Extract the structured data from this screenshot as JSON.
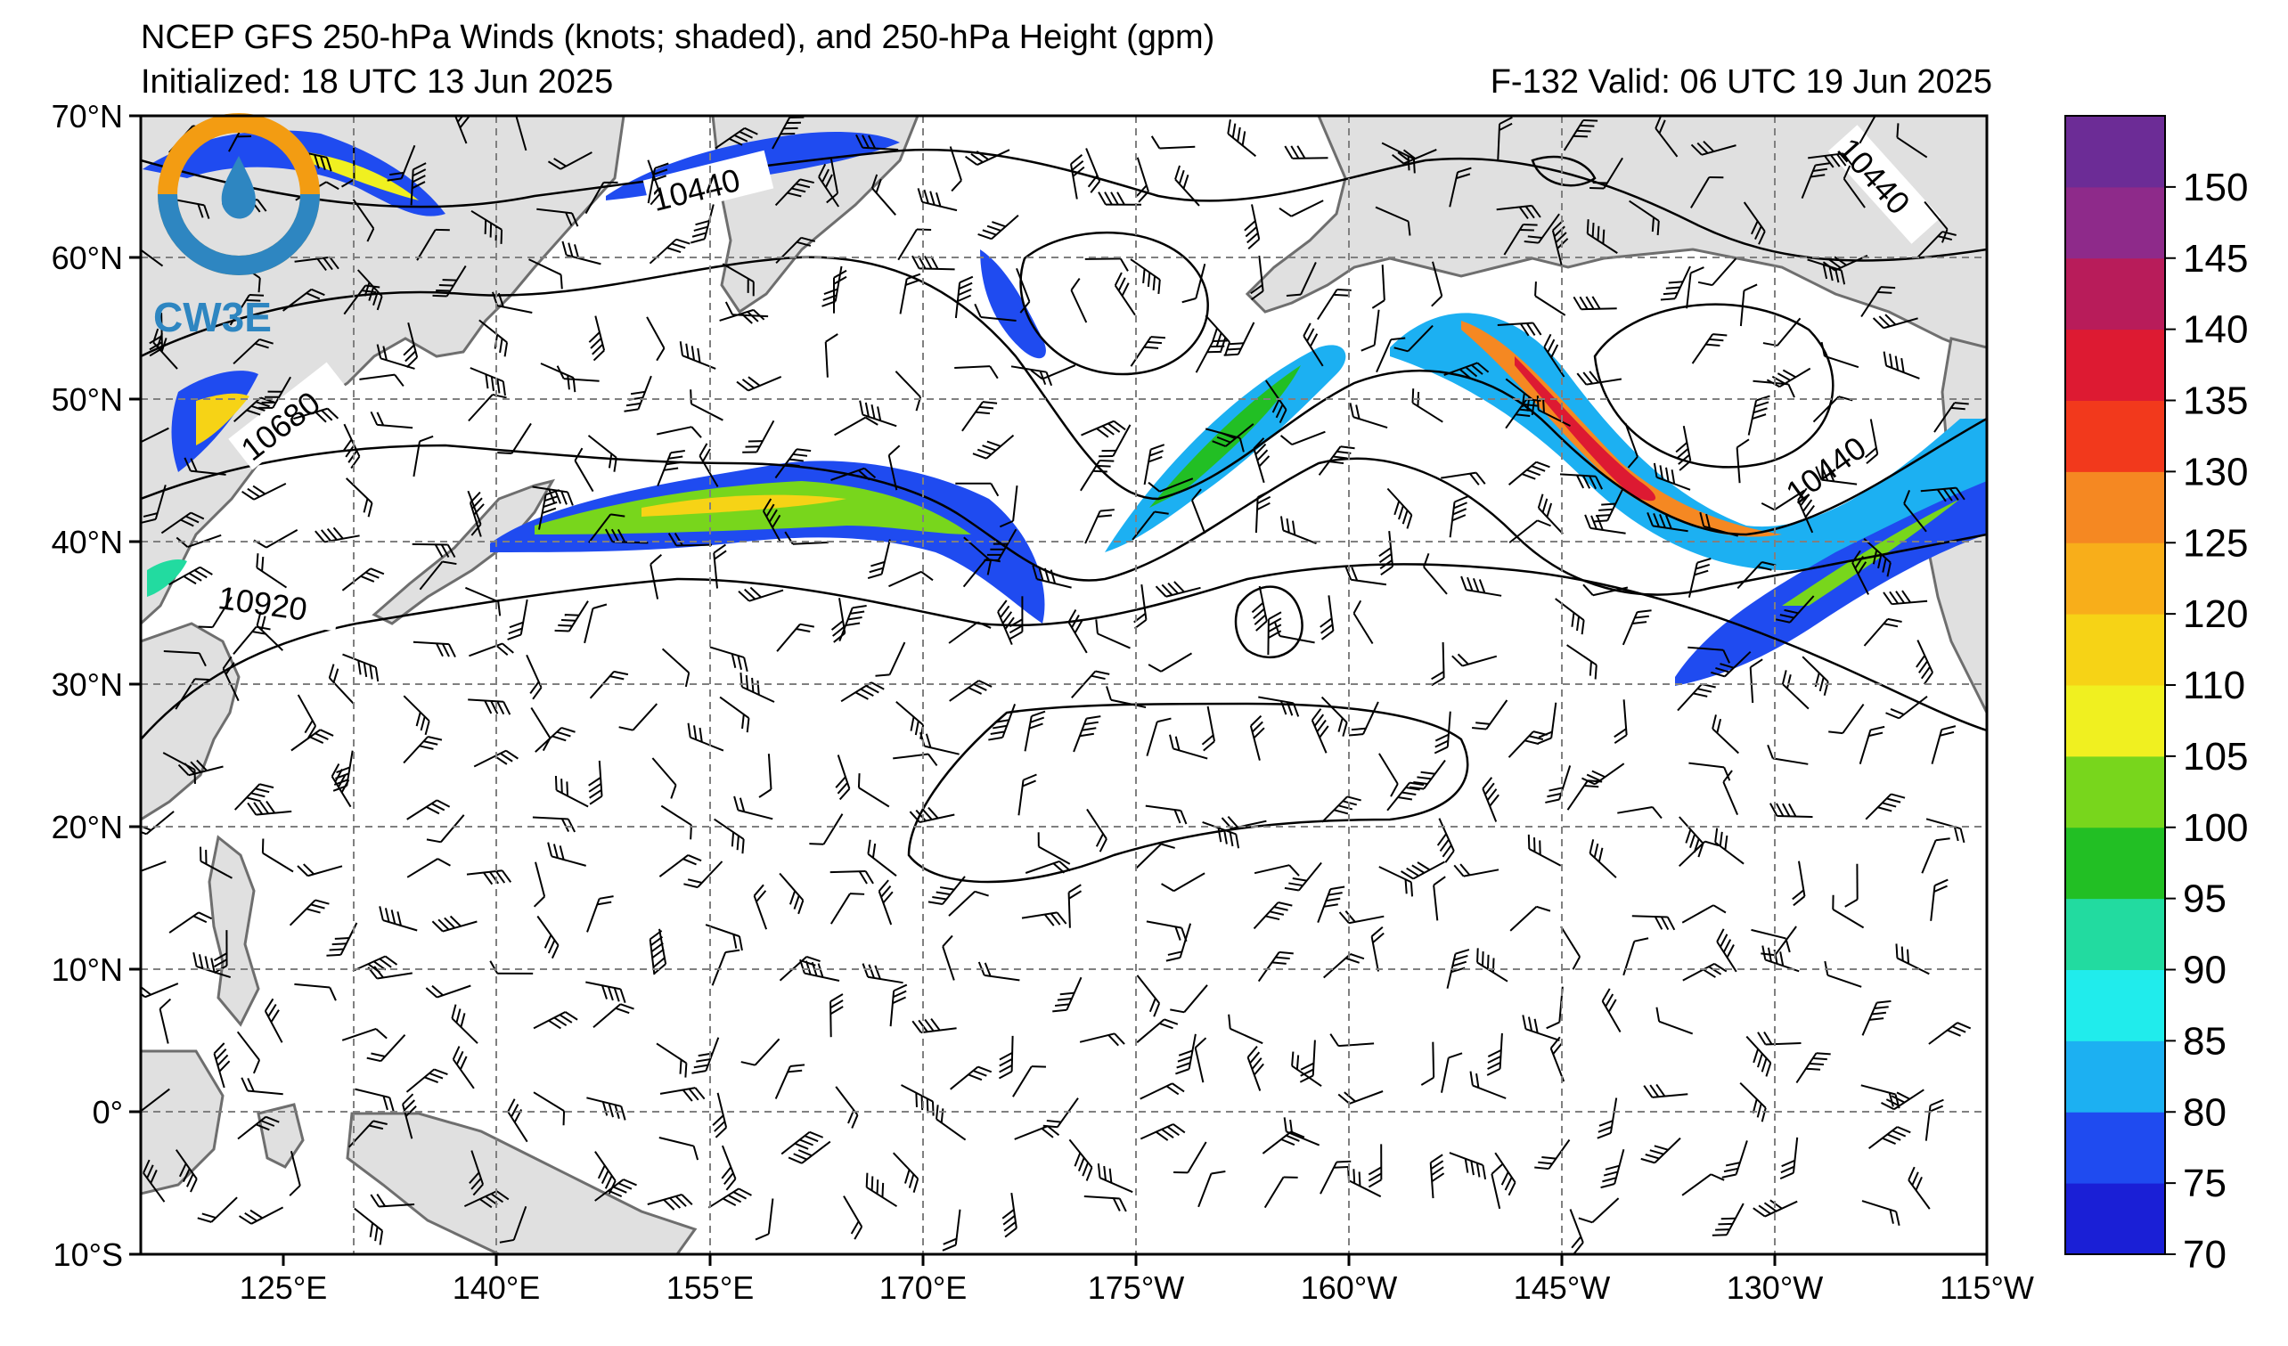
{
  "header": {
    "title": "NCEP GFS 250-hPa Winds (knots; shaded), and 250-hPa Height (gpm)",
    "initialized": "Initialized: 18 UTC 13 Jun 2025",
    "valid": "F-132  Valid: 06 UTC 19 Jun 2025"
  },
  "logo": {
    "text": "CW3E"
  },
  "axes": {
    "lat_ticks": [
      "70°N",
      "60°N",
      "50°N",
      "40°N",
      "30°N",
      "20°N",
      "10°N",
      "0°",
      "10°S"
    ],
    "lon_ticks": [
      "125°E",
      "140°E",
      "155°E",
      "170°E",
      "175°W",
      "160°W",
      "145°W",
      "130°W",
      "115°W"
    ],
    "lat_range": [
      -10,
      70
    ],
    "lon_range_degE": [
      115,
      245
    ]
  },
  "contour_labels": [
    "10440",
    "10440",
    "10440",
    "10680",
    "10920"
  ],
  "colorbar": {
    "labels": [
      "70",
      "75",
      "80",
      "85",
      "90",
      "95",
      "100",
      "105",
      "110",
      "120",
      "125",
      "130",
      "135",
      "140",
      "145",
      "150"
    ],
    "colors": [
      "#1a1fd6",
      "#1f4bf0",
      "#1cb0f2",
      "#20ecec",
      "#22dba0",
      "#22bf24",
      "#78d61c",
      "#f0f020",
      "#f6d316",
      "#f8ae1a",
      "#f58822",
      "#f2391c",
      "#dd1a32",
      "#b81c5a",
      "#8e2a8a",
      "#6c2c96"
    ]
  },
  "colors": {
    "land": "#e0e0e0",
    "coast": "#6e6e6e",
    "grid": "#808080"
  }
}
